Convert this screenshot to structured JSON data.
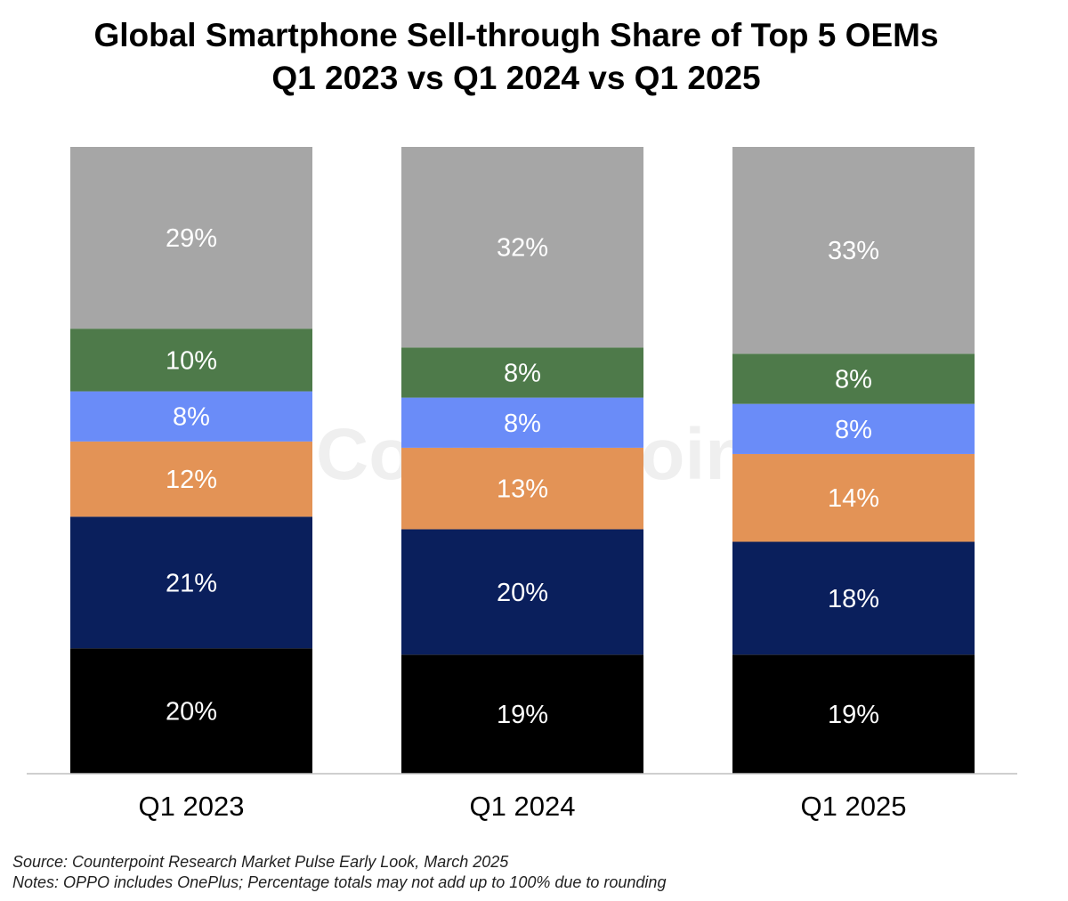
{
  "chart_data": {
    "type": "bar",
    "stacked": true,
    "title": "Global Smartphone Sell-through Share of Top 5 OEMs",
    "subtitle": "Q1 2023 vs Q1 2024 vs Q1 2025",
    "categories": [
      "Q1 2023",
      "Q1 2024",
      "Q1 2025"
    ],
    "series": [
      {
        "name": "Segment 1 (black)",
        "color": "#000000",
        "values": [
          20,
          19,
          19
        ]
      },
      {
        "name": "Segment 2 (navy)",
        "color": "#0a1f5c",
        "values": [
          21,
          20,
          18
        ]
      },
      {
        "name": "Segment 3 (orange)",
        "color": "#e39356",
        "values": [
          12,
          13,
          14
        ]
      },
      {
        "name": "Segment 4 (blue)",
        "color": "#6a8cf8",
        "values": [
          8,
          8,
          8
        ]
      },
      {
        "name": "Segment 5 (green)",
        "color": "#4e7a4a",
        "values": [
          10,
          8,
          8
        ]
      },
      {
        "name": "Segment 6 (grey)",
        "color": "#a6a6a6",
        "values": [
          29,
          32,
          33
        ]
      }
    ],
    "value_suffix": "%",
    "xlabel": "",
    "ylabel": "",
    "grid": false,
    "legend": "none"
  },
  "watermark": "Counterpoint",
  "source": "Source: Counterpoint Research Market Pulse Early Look, March 2025",
  "notes": "Notes: OPPO includes OnePlus; Percentage totals may not add up to 100% due to rounding"
}
